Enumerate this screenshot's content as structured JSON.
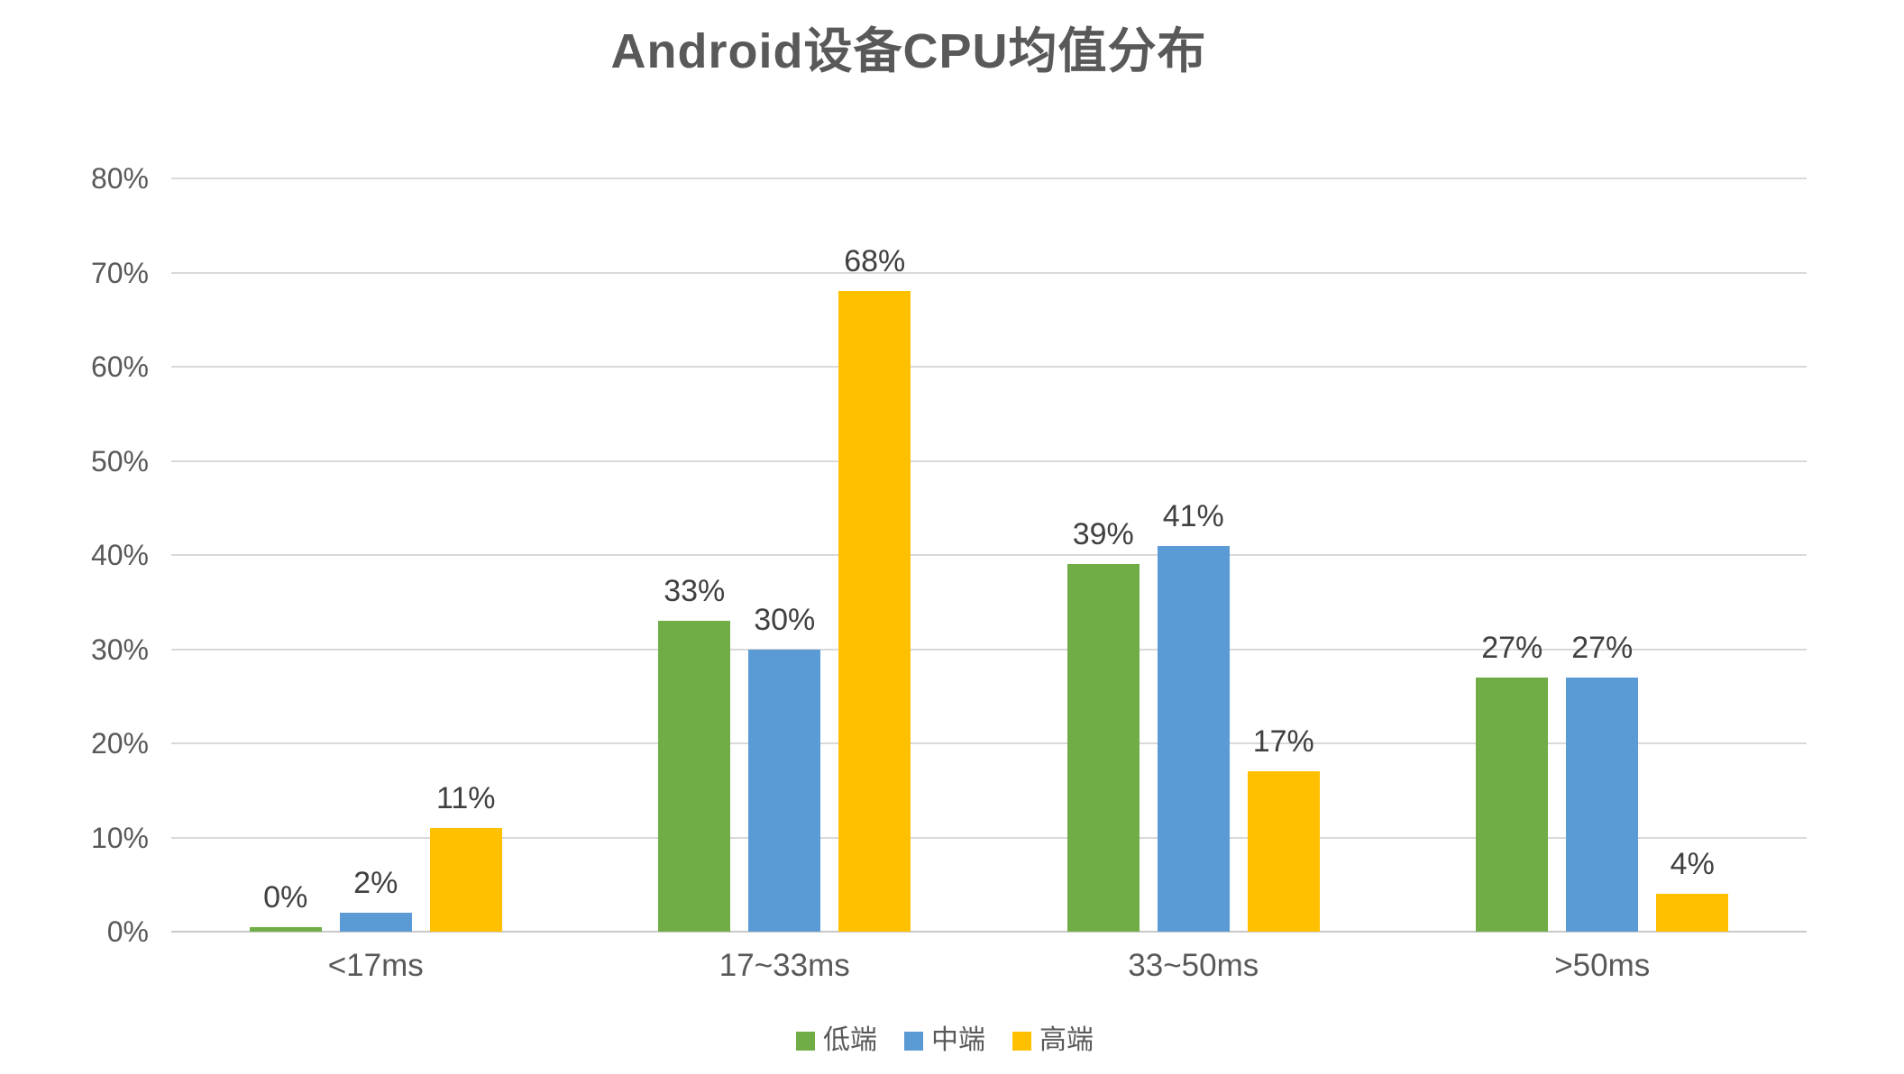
{
  "chart_data": {
    "type": "bar",
    "title": "Android设备CPU均值分布",
    "categories": [
      "<17ms",
      "17~33ms",
      "33~50ms",
      ">50ms"
    ],
    "series": [
      {
        "name": "低端",
        "color": "#70AD47",
        "values": [
          0,
          33,
          39,
          27
        ],
        "labels": [
          "0%",
          "33%",
          "39%",
          "27%"
        ]
      },
      {
        "name": "中端",
        "color": "#5B9BD5",
        "values": [
          2,
          30,
          41,
          27
        ],
        "labels": [
          "2%",
          "30%",
          "41%",
          "27%"
        ]
      },
      {
        "name": "高端",
        "color": "#FFC000",
        "values": [
          11,
          68,
          17,
          4
        ],
        "labels": [
          "11%",
          "68%",
          "17%",
          "4%"
        ]
      }
    ],
    "y_axis": {
      "min": 0,
      "max": 80,
      "step": 10,
      "tick_labels": [
        "0%",
        "10%",
        "20%",
        "30%",
        "40%",
        "50%",
        "60%",
        "70%",
        "80%"
      ]
    },
    "grid": true,
    "legend_position": "bottom",
    "legend": [
      "低端",
      "中端",
      "高端"
    ],
    "colors": {
      "title_text": "#595959",
      "axis_text": "#595959",
      "data_label_text": "#404040",
      "gridline": "#D9D9D9",
      "axis_line": "#C9C9C9",
      "background": "#FFFFFF"
    }
  }
}
